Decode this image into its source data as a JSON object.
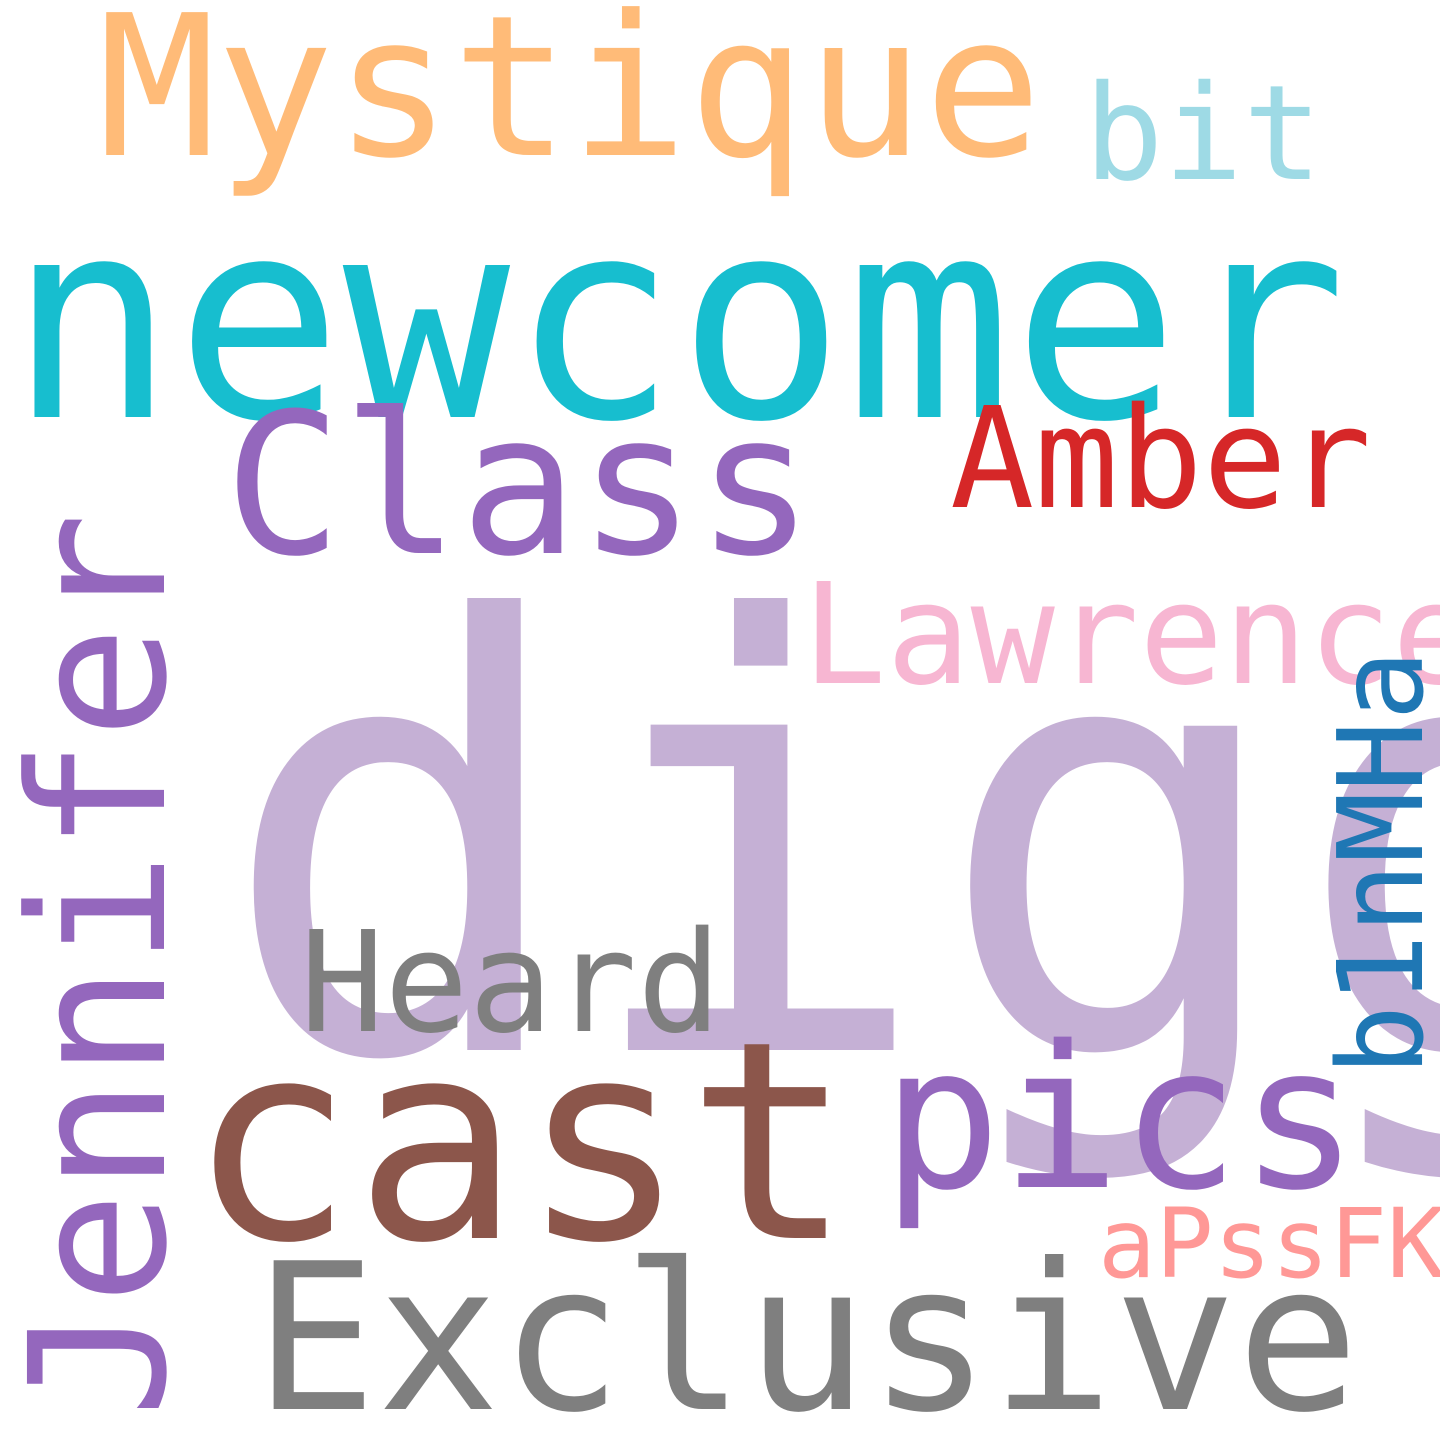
{
  "word_cloud": {
    "words": {
      "digg": {
        "text": "digg",
        "color": "#c5b0d5"
      },
      "newcomer": {
        "text": "newcomer",
        "color": "#17becf"
      },
      "cast": {
        "text": "cast",
        "color": "#8c564b"
      },
      "exclusive": {
        "text": "Exclusive",
        "color": "#7f7f7f"
      },
      "pics": {
        "text": "pics",
        "color": "#9467bd"
      },
      "mystique": {
        "text": "Mystique",
        "color": "#ffbb78"
      },
      "class": {
        "text": "Class",
        "color": "#9467bd"
      },
      "jennifer": {
        "text": "Jennifer",
        "color": "#9467bd"
      },
      "amber": {
        "text": "Amber",
        "color": "#d62728"
      },
      "lawrence": {
        "text": "Lawrence",
        "color": "#f7b6d2"
      },
      "heard": {
        "text": "Heard",
        "color": "#7f7f7f"
      },
      "bit": {
        "text": "bit",
        "color": "#9edae5"
      },
      "b1nmha": {
        "text": "b1nMHa",
        "color": "#1f77b4"
      },
      "apssfk": {
        "text": "aPssFK",
        "color": "#ff9896"
      }
    }
  }
}
